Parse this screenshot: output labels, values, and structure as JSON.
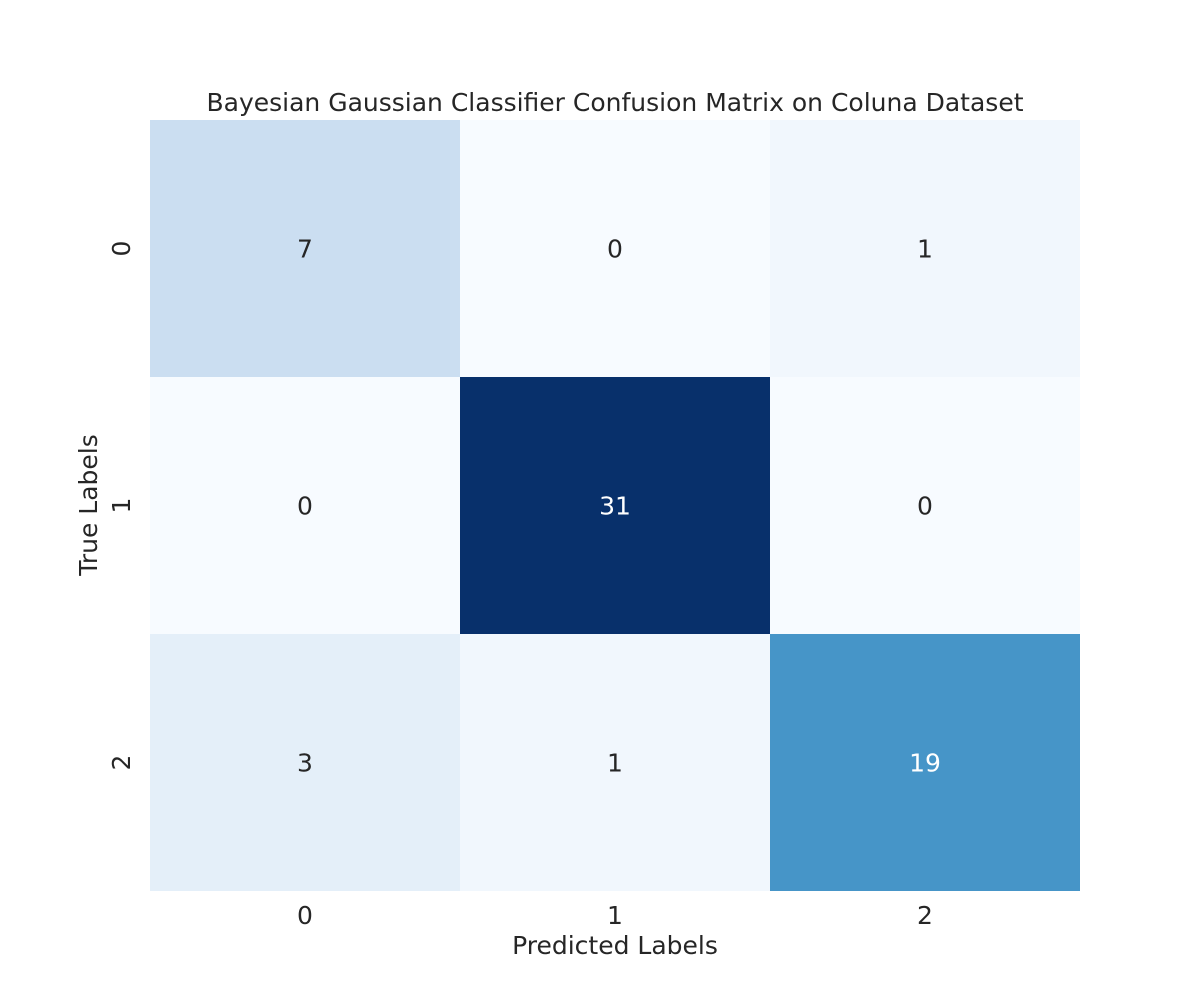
{
  "chart_data": {
    "type": "heatmap",
    "title": "Bayesian Gaussian Classifier Confusion Matrix on Coluna Dataset",
    "xlabel": "Predicted Labels",
    "ylabel": "True Labels",
    "x_categories": [
      "0",
      "1",
      "2"
    ],
    "y_categories": [
      "0",
      "1",
      "2"
    ],
    "values": [
      [
        7,
        0,
        1
      ],
      [
        0,
        31,
        0
      ],
      [
        3,
        1,
        19
      ]
    ],
    "colormap": "Blues",
    "colorbar": false,
    "annotated": true,
    "grid": false
  }
}
